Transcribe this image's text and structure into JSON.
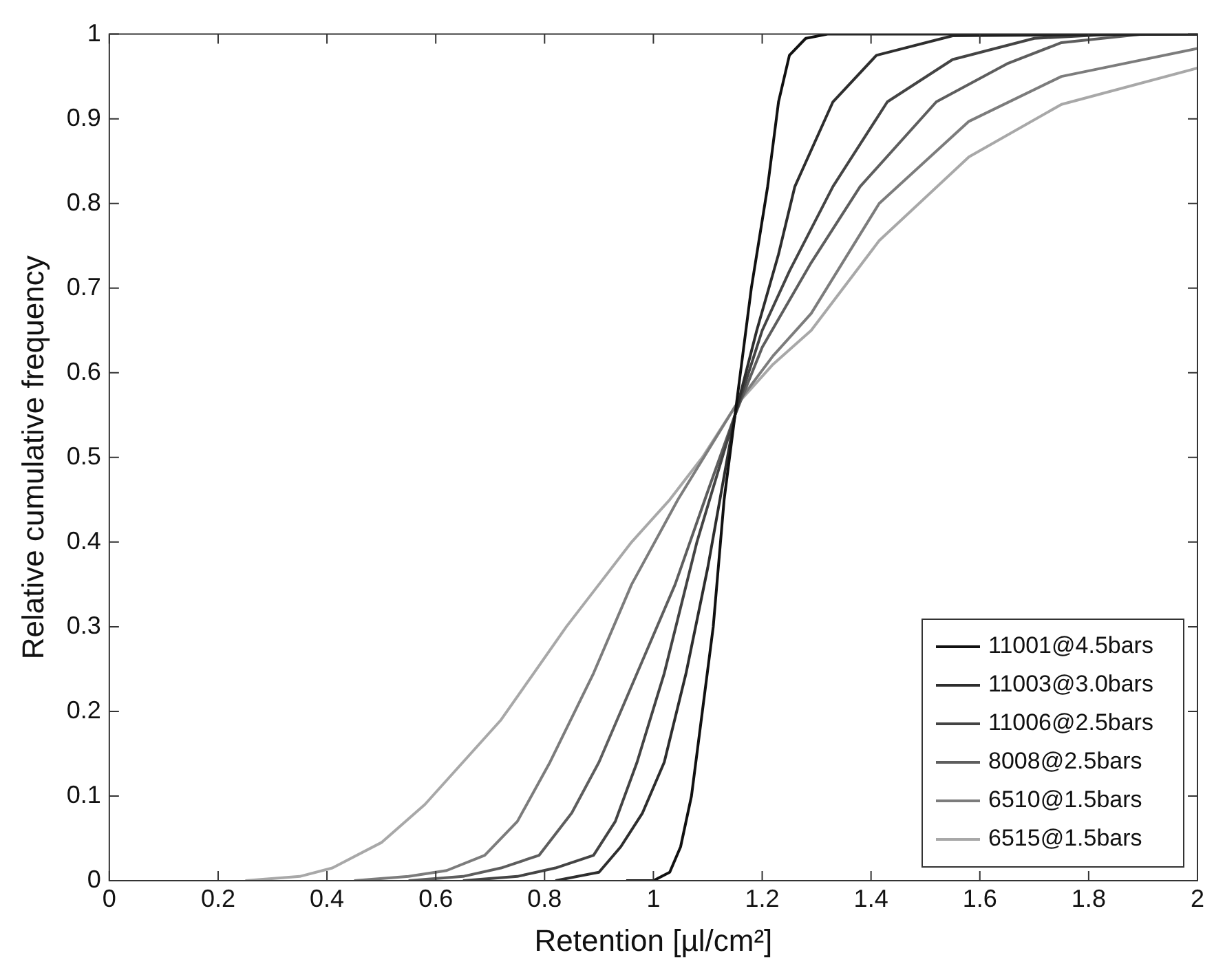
{
  "chart_data": {
    "type": "line",
    "xlabel": "Retention [µl/cm²]",
    "ylabel": "Relative cumulative frequency",
    "xlim": [
      0,
      2
    ],
    "ylim": [
      0,
      1
    ],
    "xticks": [
      0,
      0.2,
      0.4,
      0.6,
      0.8,
      1,
      1.2,
      1.4,
      1.6,
      1.8,
      2
    ],
    "yticks": [
      0,
      0.1,
      0.2,
      0.3,
      0.4,
      0.5,
      0.6,
      0.7,
      0.8,
      0.9,
      1
    ],
    "grid": false,
    "legend": "bottom right",
    "marker": "none",
    "line_style": "solid",
    "series": [
      {
        "name": "11001@4.5bars",
        "color": "#111111",
        "x": [
          0.95,
          1.0,
          1.03,
          1.05,
          1.07,
          1.09,
          1.11,
          1.13,
          1.15,
          1.18,
          1.21,
          1.23,
          1.25,
          1.28,
          1.32,
          2
        ],
        "values": [
          0,
          0,
          0.01,
          0.04,
          0.1,
          0.2,
          0.3,
          0.45,
          0.55,
          0.7,
          0.82,
          0.92,
          0.975,
          0.995,
          1,
          1
        ]
      },
      {
        "name": "11003@3.0bars",
        "color": "#2e2e2e",
        "x": [
          0.82,
          0.9,
          0.94,
          0.98,
          1.02,
          1.06,
          1.1,
          1.15,
          1.19,
          1.23,
          1.26,
          1.33,
          1.41,
          1.55,
          2
        ],
        "values": [
          0,
          0.01,
          0.04,
          0.08,
          0.14,
          0.245,
          0.37,
          0.55,
          0.65,
          0.74,
          0.82,
          0.92,
          0.975,
          0.998,
          1
        ]
      },
      {
        "name": "11006@2.5bars",
        "color": "#444444",
        "x": [
          0.65,
          0.75,
          0.82,
          0.89,
          0.93,
          0.97,
          1.02,
          1.08,
          1.15,
          1.2,
          1.25,
          1.33,
          1.43,
          1.55,
          1.7,
          1.85,
          2
        ],
        "values": [
          0,
          0.005,
          0.015,
          0.03,
          0.07,
          0.14,
          0.245,
          0.4,
          0.55,
          0.65,
          0.72,
          0.82,
          0.92,
          0.97,
          0.995,
          1,
          1
        ]
      },
      {
        "name": "8008@2.5bars",
        "color": "#5e5e5e",
        "x": [
          0.55,
          0.65,
          0.72,
          0.79,
          0.85,
          0.9,
          0.97,
          1.04,
          1.1,
          1.15,
          1.2,
          1.29,
          1.38,
          1.52,
          1.65,
          1.75,
          1.9,
          2
        ],
        "values": [
          0,
          0.005,
          0.015,
          0.03,
          0.08,
          0.14,
          0.245,
          0.35,
          0.46,
          0.55,
          0.63,
          0.73,
          0.82,
          0.92,
          0.965,
          0.99,
          1,
          1
        ]
      },
      {
        "name": "6510@1.5bars",
        "color": "#7c7c7c",
        "x": [
          0.45,
          0.55,
          0.62,
          0.69,
          0.75,
          0.81,
          0.89,
          0.96,
          1.045,
          1.15,
          1.22,
          1.29,
          1.415,
          1.58,
          1.75,
          2
        ],
        "values": [
          0,
          0.005,
          0.012,
          0.03,
          0.07,
          0.14,
          0.245,
          0.35,
          0.45,
          0.56,
          0.62,
          0.67,
          0.8,
          0.897,
          0.95,
          0.983
        ]
      },
      {
        "name": "6515@1.5bars",
        "color": "#a8a8a8",
        "x": [
          0.25,
          0.35,
          0.41,
          0.5,
          0.58,
          0.65,
          0.72,
          0.78,
          0.84,
          0.9,
          0.96,
          1.03,
          1.09,
          1.15,
          1.22,
          1.29,
          1.415,
          1.58,
          1.75,
          2
        ],
        "values": [
          0,
          0.005,
          0.015,
          0.045,
          0.09,
          0.14,
          0.19,
          0.245,
          0.3,
          0.35,
          0.4,
          0.45,
          0.5,
          0.56,
          0.61,
          0.65,
          0.756,
          0.855,
          0.917,
          0.96
        ]
      }
    ]
  }
}
